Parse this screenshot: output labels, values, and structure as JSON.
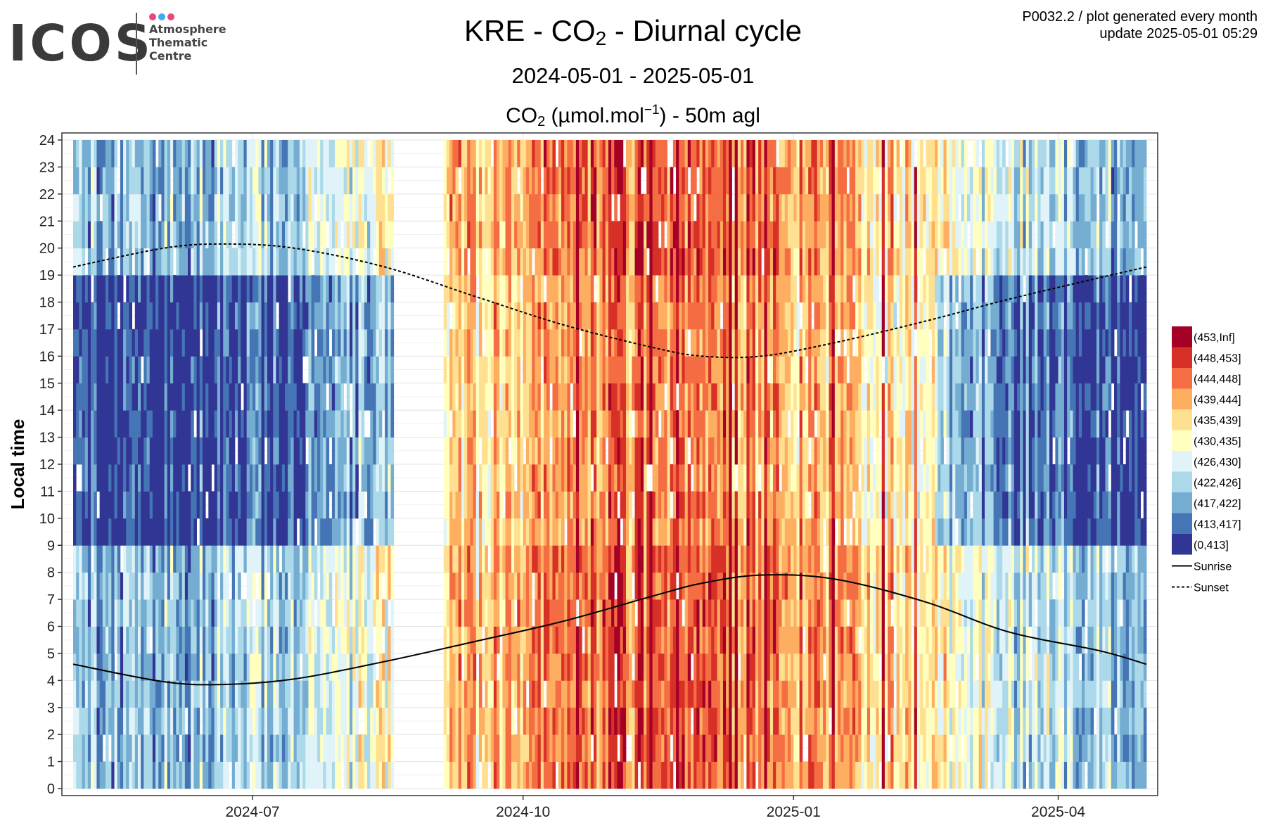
{
  "logo": {
    "wordmark": "ICOS",
    "line1": "Atmosphere",
    "line2": "Thematic",
    "line3": "Centre",
    "dot_colors": [
      "#e8467c",
      "#3fa9f5",
      "#e8467c"
    ]
  },
  "header": {
    "title_prefix": "KRE - CO",
    "title_sub": "2",
    "title_suffix": " - Diurnal cycle",
    "date_range": "2024-05-01 - 2025-05-01",
    "var_prefix": "CO",
    "var_sub": "2",
    "var_unit_open": " (µmol.mol",
    "var_unit_sup": "−1",
    "var_unit_close": ") - 50m agl",
    "plot_code": "P0032.2 / plot generated every month",
    "update": "update  2025-05-01 05:29"
  },
  "chart_data": {
    "type": "heatmap",
    "title": "KRE - CO2 - Diurnal cycle",
    "subtitle": "2024-05-01 - 2025-05-01",
    "value_label": "CO2 (µmol.mol-1) - 50m agl",
    "ylabel": "Local time",
    "x_range": [
      "2024-05-01",
      "2025-05-01"
    ],
    "y_range": [
      0,
      24
    ],
    "x_ticks": [
      "2024-07",
      "2024-10",
      "2025-01",
      "2025-04"
    ],
    "y_ticks": [
      0,
      1,
      2,
      3,
      4,
      5,
      6,
      7,
      8,
      9,
      10,
      11,
      12,
      13,
      14,
      15,
      16,
      17,
      18,
      19,
      20,
      21,
      22,
      23,
      24
    ],
    "grid": true,
    "legend_position": "right",
    "data_gaps": [
      [
        "2024-08-18",
        "2024-09-04"
      ]
    ],
    "color_classes": [
      {
        "label": "(453,Inf]",
        "color": "#a50026"
      },
      {
        "label": "(448,453]",
        "color": "#d73027"
      },
      {
        "label": "(444,448]",
        "color": "#f46d43"
      },
      {
        "label": "(439,444]",
        "color": "#fdae61"
      },
      {
        "label": "(435,439]",
        "color": "#fee090"
      },
      {
        "label": "(430,435]",
        "color": "#ffffbf"
      },
      {
        "label": "(426,430]",
        "color": "#e0f3f8"
      },
      {
        "label": "(422,426]",
        "color": "#abd9e9"
      },
      {
        "label": "(417,422]",
        "color": "#74add1"
      },
      {
        "label": "(413,417]",
        "color": "#4575b4"
      },
      {
        "label": "(0,413]",
        "color": "#313695"
      }
    ],
    "series": [
      {
        "name": "Sunrise",
        "style": "solid",
        "x": [
          "2024-05-01",
          "2024-06-01",
          "2024-06-21",
          "2024-07-15",
          "2024-08-15",
          "2024-09-15",
          "2024-10-15",
          "2024-11-15",
          "2024-12-01",
          "2024-12-21",
          "2025-01-15",
          "2025-02-15",
          "2025-03-15",
          "2025-04-15",
          "2025-05-01"
        ],
        "y": [
          4.6,
          3.95,
          3.85,
          4.05,
          4.7,
          5.45,
          6.2,
          7.15,
          7.6,
          7.9,
          7.75,
          6.9,
          5.8,
          5.1,
          4.6
        ]
      },
      {
        "name": "Sunset",
        "style": "dashed",
        "x": [
          "2024-05-01",
          "2024-06-01",
          "2024-06-21",
          "2024-07-15",
          "2024-08-15",
          "2024-09-15",
          "2024-10-15",
          "2024-11-15",
          "2024-12-01",
          "2024-12-21",
          "2025-01-15",
          "2025-02-15",
          "2025-03-15",
          "2025-04-15",
          "2025-05-01"
        ],
        "y": [
          19.3,
          20.0,
          20.15,
          20.0,
          19.3,
          18.2,
          17.15,
          16.3,
          16.0,
          16.0,
          16.5,
          17.3,
          18.1,
          18.9,
          19.3
        ]
      }
    ]
  }
}
